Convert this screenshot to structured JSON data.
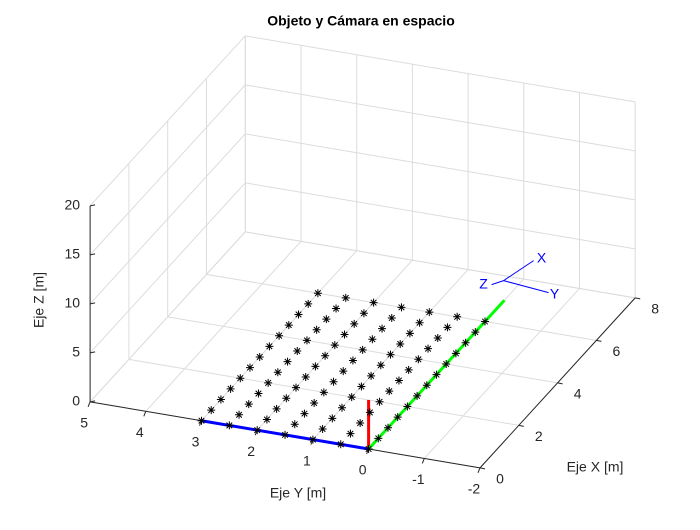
{
  "chart_data": {
    "type": "scatter3d",
    "title": "Objeto y Cámara en espacio",
    "xlabel": "Eje X [m]",
    "ylabel": "Eje Y [m]",
    "zlabel": "Eje Z [m]",
    "xlim": [
      0,
      8
    ],
    "ylim": [
      -2,
      5
    ],
    "zlim": [
      0,
      20
    ],
    "xticks": [
      0,
      2,
      4,
      6,
      8
    ],
    "yticks": [
      -2,
      -1,
      0,
      1,
      2,
      3,
      4,
      5
    ],
    "zticks": [
      0,
      5,
      10,
      15,
      20
    ],
    "grid": true,
    "marker_color": "#000000",
    "points": {
      "x": [
        0,
        0.5,
        1,
        1.5,
        2,
        2.5,
        3,
        3.5,
        4,
        4.5,
        5,
        5.5,
        6,
        0,
        0.5,
        1,
        1.5,
        2,
        2.5,
        3,
        3.5,
        4,
        4.5,
        5,
        5.5,
        6,
        0,
        0.5,
        1,
        1.5,
        2,
        2.5,
        3,
        3.5,
        4,
        4.5,
        5,
        5.5,
        6,
        0,
        0.5,
        1,
        1.5,
        2,
        2.5,
        3,
        3.5,
        4,
        4.5,
        5,
        5.5,
        6,
        0,
        0.5,
        1,
        1.5,
        2,
        2.5,
        3,
        3.5,
        4,
        4.5,
        5,
        5.5,
        6,
        0,
        0.5,
        1,
        1.5,
        2,
        2.5,
        3,
        3.5,
        4,
        4.5,
        5,
        5.5,
        6,
        0,
        0.5,
        1,
        1.5,
        2,
        2.5,
        3,
        3.5,
        4,
        4.5,
        5,
        5.5,
        6
      ],
      "y": [
        0,
        0,
        0,
        0,
        0,
        0,
        0,
        0,
        0,
        0,
        0,
        0,
        0,
        0.5,
        0.5,
        0.5,
        0.5,
        0.5,
        0.5,
        0.5,
        0.5,
        0.5,
        0.5,
        0.5,
        0.5,
        0.5,
        1,
        1,
        1,
        1,
        1,
        1,
        1,
        1,
        1,
        1,
        1,
        1,
        1,
        1.5,
        1.5,
        1.5,
        1.5,
        1.5,
        1.5,
        1.5,
        1.5,
        1.5,
        1.5,
        1.5,
        1.5,
        1.5,
        2,
        2,
        2,
        2,
        2,
        2,
        2,
        2,
        2,
        2,
        2,
        2,
        2,
        2.5,
        2.5,
        2.5,
        2.5,
        2.5,
        2.5,
        2.5,
        2.5,
        2.5,
        2.5,
        2.5,
        2.5,
        2.5,
        3,
        3,
        3,
        3,
        3,
        3,
        3,
        3,
        3,
        3,
        3,
        3,
        3
      ],
      "z": [
        0,
        0,
        0,
        0,
        0,
        0,
        0,
        0,
        0,
        0,
        0,
        0,
        0,
        0,
        0,
        0,
        0,
        0,
        0,
        0,
        0,
        0,
        0,
        0,
        0,
        0,
        0,
        0,
        0,
        0,
        0,
        0,
        0,
        0,
        0,
        0,
        0,
        0,
        0,
        0,
        0,
        0,
        0,
        0,
        0,
        0,
        0,
        0,
        0,
        0,
        0,
        0,
        0,
        0,
        0,
        0,
        0,
        0,
        0,
        0,
        0,
        0,
        0,
        0,
        0,
        0,
        0,
        0,
        0,
        0,
        0,
        0,
        0,
        0,
        0,
        0,
        0,
        0,
        0,
        0,
        0,
        0,
        0,
        0,
        0,
        0,
        0,
        0,
        0,
        0,
        0
      ]
    },
    "lines": [
      {
        "color": "#ff0000",
        "x": [
          0,
          0
        ],
        "y": [
          0,
          0
        ],
        "z": [
          0,
          5
        ]
      },
      {
        "color": "#00ff00",
        "x": [
          0,
          7
        ],
        "y": [
          0,
          0
        ],
        "z": [
          0,
          0
        ]
      },
      {
        "color": "#0000ff",
        "x": [
          0,
          0
        ],
        "y": [
          0,
          3
        ],
        "z": [
          0,
          0
        ]
      }
    ],
    "camera": {
      "position": [
        3.8,
        -1.1,
        10
      ],
      "color": "#0000ff",
      "labels": [
        "X",
        "Y",
        "Z"
      ]
    }
  }
}
